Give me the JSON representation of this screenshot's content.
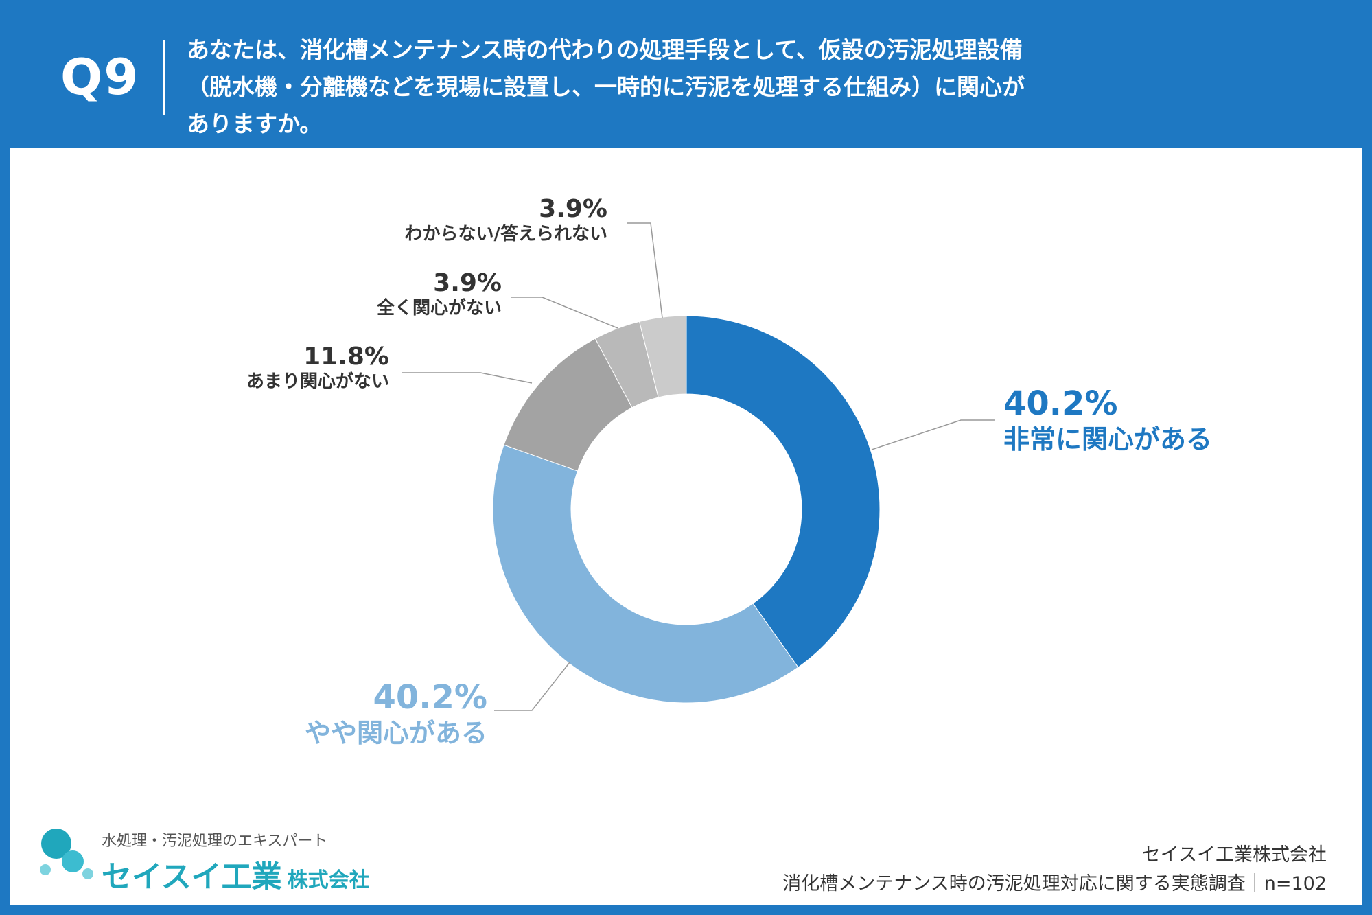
{
  "header": {
    "qnum": "Q9",
    "question_lines": [
      "あなたは、消化槽メンテナンス時の代わりの処理手段として、仮設の汚泥処理設備",
      "（脱水機・分離機などを現場に設置し、一時的に汚泥を処理する仕組み）に関心が",
      "ありますか。"
    ]
  },
  "chart_data": {
    "type": "pie",
    "variant": "donut",
    "slices": [
      {
        "label": "非常に関心がある",
        "value": 40.2,
        "display": "40.2%",
        "color": "#1e78c2"
      },
      {
        "label": "やや関心がある",
        "value": 40.2,
        "display": "40.2%",
        "color": "#82b4dc"
      },
      {
        "label": "あまり関心がない",
        "value": 11.8,
        "display": "11.8%",
        "color": "#a3a3a3"
      },
      {
        "label": "全く関心がない",
        "value": 3.9,
        "display": "3.9%",
        "color": "#b9b9b9"
      },
      {
        "label": "わからない/答えられない",
        "value": 3.9,
        "display": "3.9%",
        "color": "#cbcbcb"
      }
    ],
    "label_colors": {
      "dark": "#333333",
      "accent": "#1e78c2",
      "light_accent": "#82b4dc"
    }
  },
  "footer": {
    "tagline": "水処理・汚泥処理のエキスパート",
    "brand_main": "セイスイ工業",
    "brand_sub": "株式会社",
    "company": "セイスイ工業株式会社",
    "survey": "消化槽メンテナンス時の汚泥処理対応に関する実態調査｜n=102"
  }
}
